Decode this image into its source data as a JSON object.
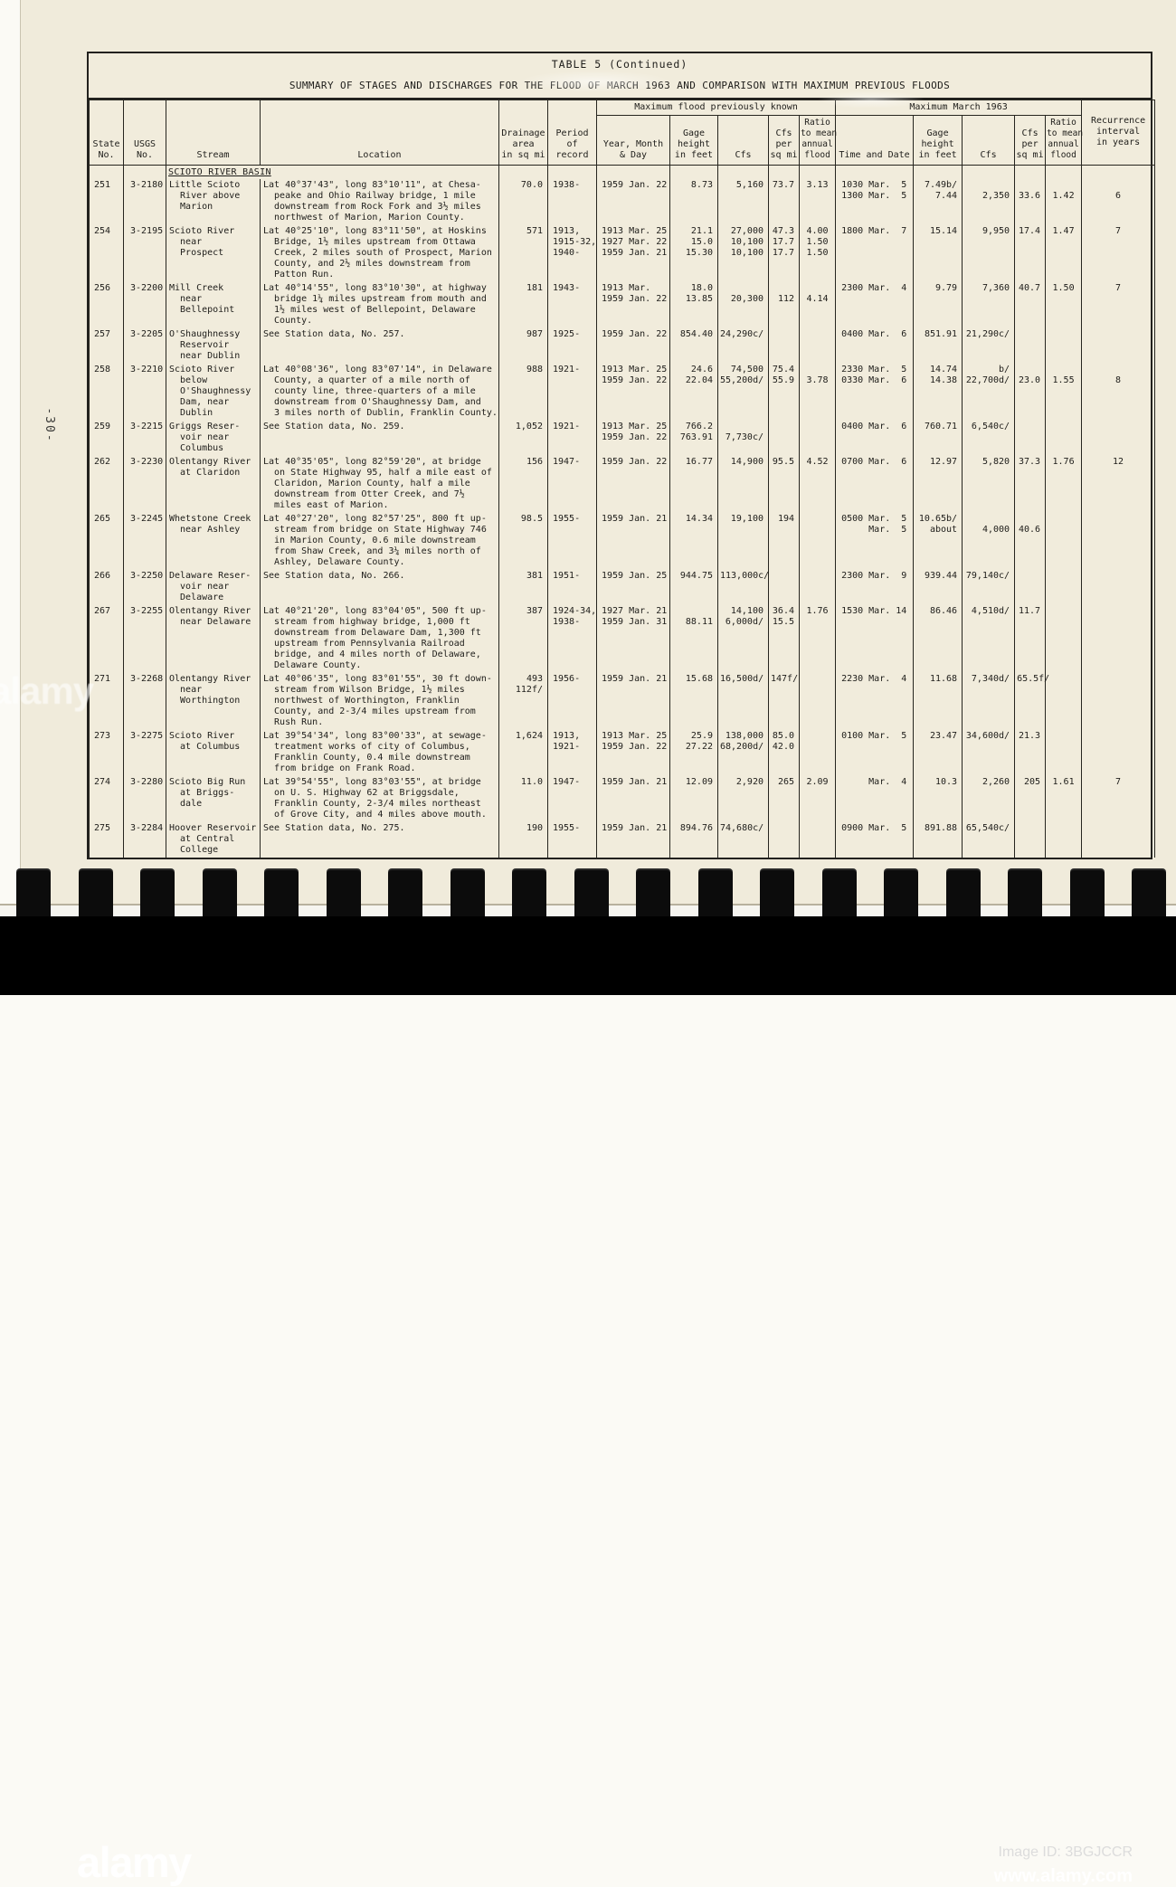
{
  "page": {
    "page_number": "-30-",
    "table_title": "TABLE 5 (Continued)",
    "table_subtitle": "SUMMARY OF STAGES AND DISCHARGES FOR THE FLOOD OF MARCH 1963 AND COMPARISON WITH MAXIMUM PREVIOUS FLOODS"
  },
  "header": {
    "state_no": "State\nNo.",
    "usgs_no": "USGS\nNo.",
    "stream": "Stream",
    "location": "Location",
    "drainage": "Drainage\narea\nin sq mi",
    "period": "Period\nof\nrecord",
    "group_prev": "Maximum flood previously known",
    "group_mar": "Maximum March 1963",
    "prev": {
      "date": "Year, Month\n& Day",
      "gage": "Gage\nheight\nin feet",
      "cfs": "Cfs",
      "cfs_sqmi": "Cfs\nper\nsq mi",
      "ratio": "Ratio\nto mean\nannual\nflood"
    },
    "mar": {
      "time": "Time and Date",
      "gage": "Gage\nheight\nin feet",
      "cfs": "Cfs",
      "cfs_sqmi": "Cfs\nper\nsq mi",
      "ratio": "Ratio\nto mean\nannual\nflood"
    },
    "recurrence": "Recurrence\ninterval\nin years"
  },
  "basin_label": "SCIOTO RIVER BASIN",
  "rows": [
    {
      "state": "251",
      "usgs": "3-2180",
      "stream": "Little Scioto\n  River above\n  Marion",
      "location": "Lat 40°37'43\", long 83°10'11\", at Chesa-\n  peake and Ohio Railway bridge, 1 mile\n  downstream from Rock Fork and 3½ miles\n  northwest of Marion, Marion County.",
      "drainage": "70.0",
      "period": "1938-",
      "prev_date": "1959 Jan. 22",
      "prev_gage": "8.73",
      "prev_cfs": "5,160",
      "prev_cfs_sqmi": "73.7",
      "prev_ratio": "3.13",
      "mar_time": "1030 Mar.  5\n1300 Mar.  5",
      "mar_gage": "7.49b/\n7.44",
      "mar_cfs": "\n2,350",
      "mar_cfs_sqmi": "\n33.6",
      "mar_ratio": "\n1.42",
      "recurrence": "\n6"
    },
    {
      "state": "254",
      "usgs": "3-2195",
      "stream": "Scioto River\n  near\n  Prospect",
      "location": "Lat 40°25'10\", long 83°11'50\", at Hoskins\n  Bridge, 1½ miles upstream from Ottawa\n  Creek, 2 miles south of Prospect, Marion\n  County, and 2½ miles downstream from\n  Patton Run.",
      "drainage": "571",
      "period": "1913,\n1915-32,\n1940-",
      "prev_date": "1913 Mar. 25\n1927 Mar. 22\n1959 Jan. 21",
      "prev_gage": "21.1\n15.0\n15.30",
      "prev_cfs": "27,000\n10,100\n10,100",
      "prev_cfs_sqmi": "47.3\n17.7\n17.7",
      "prev_ratio": "4.00\n1.50\n1.50",
      "mar_time": "1800 Mar.  7",
      "mar_gage": "15.14",
      "mar_cfs": "9,950",
      "mar_cfs_sqmi": "17.4",
      "mar_ratio": "1.47",
      "recurrence": "7"
    },
    {
      "state": "256",
      "usgs": "3-2200",
      "stream": "Mill Creek\n  near\n  Bellepoint",
      "location": "Lat 40°14'55\", long 83°10'30\", at highway\n  bridge 1¼ miles upstream from mouth and\n  1½ miles west of Bellepoint, Delaware\n  County.",
      "drainage": "181",
      "period": "1943-",
      "prev_date": "1913 Mar.\n1959 Jan. 22",
      "prev_gage": "18.0\n13.85",
      "prev_cfs": "\n20,300",
      "prev_cfs_sqmi": "\n112",
      "prev_ratio": "\n4.14",
      "mar_time": "2300 Mar.  4",
      "mar_gage": "9.79",
      "mar_cfs": "7,360",
      "mar_cfs_sqmi": "40.7",
      "mar_ratio": "1.50",
      "recurrence": "7"
    },
    {
      "state": "257",
      "usgs": "3-2205",
      "stream": "O'Shaughnessy\n  Reservoir\n  near Dublin",
      "location": "See Station data, No. 257.",
      "drainage": "987",
      "period": "1925-",
      "prev_date": "1959 Jan. 22",
      "prev_gage": "854.40",
      "prev_cfs": "24,290c/",
      "prev_cfs_sqmi": "",
      "prev_ratio": "",
      "mar_time": "0400 Mar.  6",
      "mar_gage": "851.91",
      "mar_cfs": "21,290c/",
      "mar_cfs_sqmi": "",
      "mar_ratio": "",
      "recurrence": ""
    },
    {
      "state": "258",
      "usgs": "3-2210",
      "stream": "Scioto River\n  below\n  O'Shaughnessy\n  Dam, near\n  Dublin",
      "location": "Lat 40°08'36\", long 83°07'14\", in Delaware\n  County, a quarter of a mile north of\n  county line, three-quarters of a mile\n  downstream from O'Shaughnessy Dam, and\n  3 miles north of Dublin, Franklin County.",
      "drainage": "988",
      "period": "1921-",
      "prev_date": "1913 Mar. 25\n1959 Jan. 22",
      "prev_gage": "24.6\n22.04",
      "prev_cfs": "74,500\n55,200d/",
      "prev_cfs_sqmi": "75.4\n55.9",
      "prev_ratio": "\n3.78",
      "mar_time": "2330 Mar.  5\n0330 Mar.  6",
      "mar_gage": "14.74\n14.38",
      "mar_cfs": "b/\n22,700d/",
      "mar_cfs_sqmi": "\n23.0",
      "mar_ratio": "\n1.55",
      "recurrence": "\n8"
    },
    {
      "state": "259",
      "usgs": "3-2215",
      "stream": "Griggs Reser-\n  voir near\n  Columbus",
      "location": "See Station data, No. 259.",
      "drainage": "1,052",
      "period": "1921-",
      "prev_date": "1913 Mar. 25\n1959 Jan. 22",
      "prev_gage": "766.2\n763.91",
      "prev_cfs": "\n7,730c/",
      "prev_cfs_sqmi": "",
      "prev_ratio": "",
      "mar_time": "0400 Mar.  6",
      "mar_gage": "760.71",
      "mar_cfs": "6,540c/",
      "mar_cfs_sqmi": "",
      "mar_ratio": "",
      "recurrence": ""
    },
    {
      "state": "262",
      "usgs": "3-2230",
      "stream": "Olentangy River\n  at Claridon",
      "location": "Lat 40°35'05\", long 82°59'20\", at bridge\n  on State Highway 95, half a mile east of\n  Claridon, Marion County, half a mile\n  downstream from Otter Creek, and 7½\n  miles east of Marion.",
      "drainage": "156",
      "period": "1947-",
      "prev_date": "1959 Jan. 22",
      "prev_gage": "16.77",
      "prev_cfs": "14,900",
      "prev_cfs_sqmi": "95.5",
      "prev_ratio": "4.52",
      "mar_time": "0700 Mar.  6",
      "mar_gage": "12.97",
      "mar_cfs": "5,820",
      "mar_cfs_sqmi": "37.3",
      "mar_ratio": "1.76",
      "recurrence": "12"
    },
    {
      "state": "265",
      "usgs": "3-2245",
      "stream": "Whetstone Creek\n  near Ashley",
      "location": "Lat 40°27'20\", long 82°57'25\", 800 ft up-\n  stream from bridge on State Highway 746\n  in Marion County, 0.6 mile downstream\n  from Shaw Creek, and 3¼ miles north of\n  Ashley, Delaware County.",
      "drainage": "98.5",
      "period": "1955-",
      "prev_date": "1959 Jan. 21",
      "prev_gage": "14.34",
      "prev_cfs": "19,100",
      "prev_cfs_sqmi": "194",
      "prev_ratio": "",
      "mar_time": "0500 Mar.  5\n     Mar.  5",
      "mar_gage": "10.65b/\nabout",
      "mar_cfs": "\n4,000",
      "mar_cfs_sqmi": "\n40.6",
      "mar_ratio": "",
      "recurrence": ""
    },
    {
      "state": "266",
      "usgs": "3-2250",
      "stream": "Delaware Reser-\n  voir near\n  Delaware",
      "location": "See Station data, No. 266.",
      "drainage": "381",
      "period": "1951-",
      "prev_date": "1959 Jan. 25",
      "prev_gage": "944.75",
      "prev_cfs": "113,000c/",
      "prev_cfs_sqmi": "",
      "prev_ratio": "",
      "mar_time": "2300 Mar.  9",
      "mar_gage": "939.44",
      "mar_cfs": "79,140c/",
      "mar_cfs_sqmi": "",
      "mar_ratio": "",
      "recurrence": ""
    },
    {
      "state": "267",
      "usgs": "3-2255",
      "stream": "Olentangy River\n  near Delaware",
      "location": "Lat 40°21'20\", long 83°04'05\", 500 ft up-\n  stream from highway bridge, 1,000 ft\n  downstream from Delaware Dam, 1,300 ft\n  upstream from Pennsylvania Railroad\n  bridge, and 4 miles north of Delaware,\n  Delaware County.",
      "drainage": "387",
      "period": "1924-34,\n1938-",
      "prev_date": "1927 Mar. 21\n1959 Jan. 31",
      "prev_gage": "\n88.11",
      "prev_cfs": "14,100\n6,000d/",
      "prev_cfs_sqmi": "36.4\n15.5",
      "prev_ratio": "1.76",
      "mar_time": "1530 Mar. 14",
      "mar_gage": "86.46",
      "mar_cfs": "4,510d/",
      "mar_cfs_sqmi": "11.7",
      "mar_ratio": "",
      "recurrence": ""
    },
    {
      "state": "271",
      "usgs": "3-2268",
      "stream": "Olentangy River\n  near\n  Worthington",
      "location": "Lat 40°06'35\", long 83°01'55\", 30 ft down-\n  stream from Wilson Bridge, 1½ miles\n  northwest of Worthington, Franklin\n  County, and 2-3/4 miles upstream from\n  Rush Run.",
      "drainage": "493\n112f/",
      "period": "1956-",
      "prev_date": "1959 Jan. 21",
      "prev_gage": "15.68",
      "prev_cfs": "16,500d/",
      "prev_cfs_sqmi": "147f/",
      "prev_ratio": "",
      "mar_time": "2230 Mar.  4",
      "mar_gage": "11.68",
      "mar_cfs": "7,340d/",
      "mar_cfs_sqmi": "65.5f/",
      "mar_ratio": "",
      "recurrence": ""
    },
    {
      "state": "273",
      "usgs": "3-2275",
      "stream": "Scioto River\n  at Columbus",
      "location": "Lat 39°54'34\", long 83°00'33\", at sewage-\n  treatment works of city of Columbus,\n  Franklin County, 0.4 mile downstream\n  from bridge on Frank Road.",
      "drainage": "1,624",
      "period": "1913,\n1921-",
      "prev_date": "1913 Mar. 25\n1959 Jan. 22",
      "prev_gage": "25.9\n27.22",
      "prev_cfs": "138,000\n68,200d/",
      "prev_cfs_sqmi": "85.0\n42.0",
      "prev_ratio": "",
      "mar_time": "0100 Mar.  5",
      "mar_gage": "23.47",
      "mar_cfs": "34,600d/",
      "mar_cfs_sqmi": "21.3",
      "mar_ratio": "",
      "recurrence": ""
    },
    {
      "state": "274",
      "usgs": "3-2280",
      "stream": "Scioto Big Run\n  at Briggs-\n  dale",
      "location": "Lat 39°54'55\", long 83°03'55\", at bridge\n  on U. S. Highway 62 at Briggsdale,\n  Franklin County, 2-3/4 miles northeast\n  of Grove City, and 4 miles above mouth.",
      "drainage": "11.0",
      "period": "1947-",
      "prev_date": "1959 Jan. 21",
      "prev_gage": "12.09",
      "prev_cfs": "2,920",
      "prev_cfs_sqmi": "265",
      "prev_ratio": "2.09",
      "mar_time": "     Mar.  4",
      "mar_gage": "10.3",
      "mar_cfs": "2,260",
      "mar_cfs_sqmi": "205",
      "mar_ratio": "1.61",
      "recurrence": "7"
    },
    {
      "state": "275",
      "usgs": "3-2284",
      "stream": "Hoover Reservoir\n  at Central\n  College",
      "location": "See Station data, No. 275.",
      "drainage": "190",
      "period": "1955-",
      "prev_date": "1959 Jan. 21",
      "prev_gage": "894.76",
      "prev_cfs": "74,680c/",
      "prev_cfs_sqmi": "",
      "prev_ratio": "",
      "mar_time": "0900 Mar.  5",
      "mar_gage": "891.88",
      "mar_cfs": "65,540c/",
      "mar_cfs_sqmi": "",
      "mar_ratio": "",
      "recurrence": ""
    }
  ],
  "watermark": {
    "logo": "alamy",
    "image_id": "Image ID: 3BGJCCR",
    "url": "www.alamy.com"
  }
}
